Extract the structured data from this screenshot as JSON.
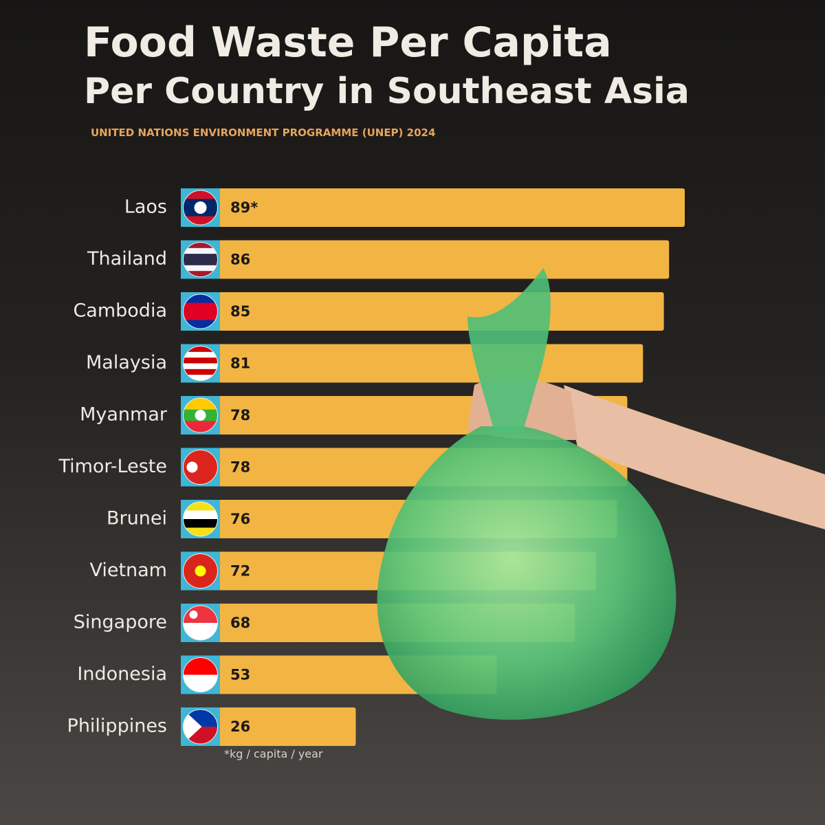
{
  "chart_data": {
    "type": "bar",
    "orientation": "horizontal",
    "title": "Food Waste Per Capita",
    "subtitle": "Per Country in Southeast Asia",
    "source": "UNITED NATIONS  ENVIRONMENT PROGRAMME (UNEP) 2024",
    "note": "*kg / capita  / year",
    "categories": [
      "Laos",
      "Thailand",
      "Cambodia",
      "Malaysia",
      "Myanmar",
      "Timor-Leste",
      "Brunei",
      "Vietnam",
      "Singapore",
      "Indonesia",
      "Philippines"
    ],
    "values": [
      89,
      86,
      85,
      81,
      78,
      78,
      76,
      72,
      68,
      53,
      26
    ],
    "value_labels": [
      "89*",
      "86",
      "85",
      "81",
      "78",
      "78",
      "76",
      "72",
      "68",
      "53",
      "26"
    ],
    "color": "#f2b544"
  }
}
